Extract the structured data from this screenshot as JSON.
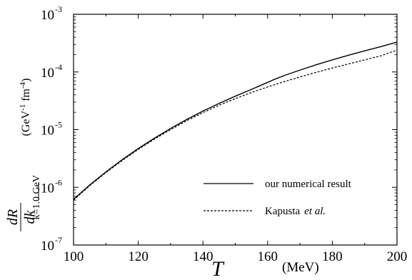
{
  "chart_data": {
    "type": "line",
    "title": "",
    "xlabel": "T",
    "xlabel_unit": "(MeV)",
    "ylabel": {
      "numerator": "dR",
      "denominator": "dk",
      "subscript": "k=1.0 GeV",
      "unit_prefix": "(GeV",
      "unit_exp1": "-1",
      "unit_mid": " fm",
      "unit_exp2": "-4",
      "unit_suffix": ")"
    },
    "xlim": [
      100,
      200
    ],
    "ylim": [
      1e-07,
      0.001
    ],
    "yscale": "log",
    "x_ticks": [
      "100",
      "120",
      "140",
      "160",
      "180",
      "200"
    ],
    "y_ticks": [
      {
        "base": "10",
        "exp": "-7"
      },
      {
        "base": "10",
        "exp": "-6"
      },
      {
        "base": "10",
        "exp": "-5"
      },
      {
        "base": "10",
        "exp": "-4"
      },
      {
        "base": "10",
        "exp": "-3"
      }
    ],
    "grid": false,
    "legend_position": "bottom-right",
    "series": [
      {
        "name": "our numerical result",
        "style": "solid",
        "x": [
          100,
          105,
          110,
          115,
          120,
          125,
          130,
          135,
          140,
          145,
          150,
          155,
          158,
          160,
          162,
          165,
          170,
          175,
          180,
          185,
          190,
          195,
          200
        ],
        "y": [
          6.2e-07,
          1.1e-06,
          1.85e-06,
          3e-06,
          4.7e-06,
          7.1e-06,
          1.05e-05,
          1.5e-05,
          2.1e-05,
          2.85e-05,
          3.8e-05,
          5e-05,
          5.9e-05,
          6.6e-05,
          7.4e-05,
          8.6e-05,
          0.000108,
          0.000133,
          0.000162,
          0.000195,
          0.000232,
          0.000275,
          0.00033
        ]
      },
      {
        "name": "Kapusta et al.",
        "legend_name_main": "Kapusta",
        "legend_name_italic": "et al.",
        "style": "dashed",
        "x": [
          100,
          105,
          110,
          115,
          120,
          125,
          130,
          135,
          140,
          145,
          150,
          155,
          160,
          165,
          170,
          175,
          180,
          185,
          190,
          195,
          200
        ],
        "y": [
          6e-07,
          1.07e-06,
          1.8e-06,
          2.9e-06,
          4.55e-06,
          6.85e-06,
          1e-05,
          1.43e-05,
          1.97e-05,
          2.65e-05,
          3.45e-05,
          4.4e-05,
          5.5e-05,
          6.75e-05,
          8.2e-05,
          9.85e-05,
          0.000117,
          0.000138,
          0.000162,
          0.00019,
          0.00024
        ]
      }
    ]
  }
}
